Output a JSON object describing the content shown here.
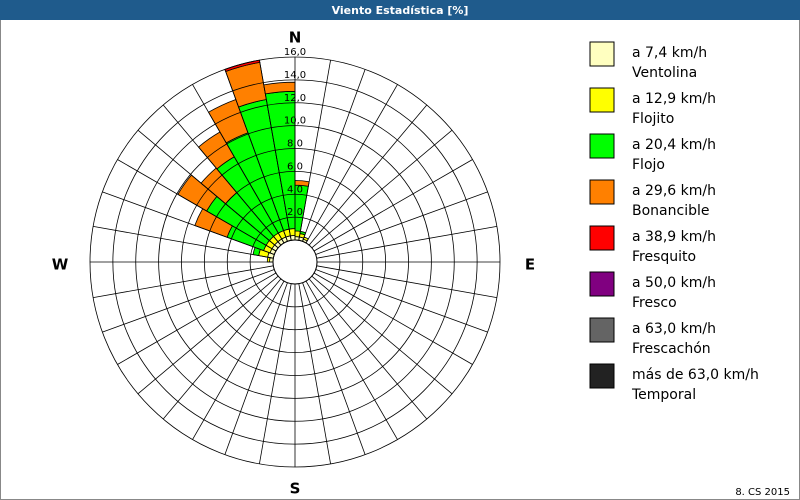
{
  "chart_data": {
    "type": "windrose",
    "title": "Viento Estadística [%]",
    "compass": [
      "N",
      "E",
      "S",
      "W"
    ],
    "footer": "8. CS 2015",
    "rlim": [
      0,
      16
    ],
    "rticks": [
      {
        "value": 2,
        "label": "2,0"
      },
      {
        "value": 4,
        "label": "4,0"
      },
      {
        "value": 6,
        "label": "6,0"
      },
      {
        "value": 8,
        "label": "8,0"
      },
      {
        "value": 10,
        "label": "10,0"
      },
      {
        "value": 12,
        "label": "12,0"
      },
      {
        "value": 14,
        "label": "14,0"
      },
      {
        "value": 16,
        "label": "16,0"
      }
    ],
    "series": [
      {
        "name": "a 7,4 km/h",
        "description": "Ventolina",
        "color": "#ffffc0",
        "values": [
          0.3,
          0.3,
          0.2,
          0,
          0,
          0,
          0,
          0,
          0,
          0,
          0,
          0,
          0,
          0,
          0,
          0,
          0,
          0,
          0,
          0,
          0,
          0,
          0,
          0,
          0,
          0,
          0,
          0.3,
          0.5,
          0.4,
          0.4,
          0.4,
          0.4,
          0.4,
          0.4,
          0.4
        ]
      },
      {
        "name": "a 12,9 km/h",
        "description": "Flojito",
        "color": "#ffff00",
        "values": [
          0.5,
          0.3,
          0.2,
          0,
          0,
          0,
          0,
          0,
          0,
          0,
          0,
          0,
          0,
          0,
          0,
          0,
          0,
          0,
          0,
          0,
          0,
          0,
          0,
          0,
          0,
          0,
          0,
          0.2,
          0.8,
          0.6,
          0.6,
          0.6,
          0.6,
          0.6,
          0.6,
          0.6
        ]
      },
      {
        "name": "a 20,4 km/h",
        "description": "Flojo",
        "color": "#00ff00",
        "values": [
          4.0,
          0.2,
          0,
          0,
          0,
          0,
          0,
          0,
          0,
          0,
          0,
          0,
          0,
          0,
          0,
          0,
          0,
          0,
          0,
          0,
          0,
          0,
          0,
          0,
          0,
          0,
          0,
          0,
          0.5,
          3.4,
          6.0,
          5.0,
          7.7,
          9.1,
          11.5,
          12.0
        ]
      },
      {
        "name": "a 29,6 km/h",
        "description": "Bonancible",
        "color": "#ff8000",
        "values": [
          0.4,
          0,
          0,
          0,
          0,
          0,
          0,
          0,
          0,
          0,
          0,
          0,
          0,
          0,
          0,
          0,
          0,
          0,
          0,
          0,
          0,
          0,
          0,
          0,
          0,
          0,
          0,
          0,
          0,
          3.0,
          2.9,
          2.8,
          2.5,
          3.1,
          3.3,
          0.8
        ]
      },
      {
        "name": "a 38,9 km/h",
        "description": "Fresquito",
        "color": "#ff0000",
        "values": [
          0,
          0,
          0,
          0,
          0,
          0,
          0,
          0,
          0,
          0,
          0,
          0,
          0,
          0,
          0,
          0,
          0,
          0,
          0,
          0,
          0,
          0,
          0,
          0,
          0,
          0,
          0,
          0,
          0,
          0,
          0,
          0,
          0,
          0,
          0.2,
          0
        ]
      },
      {
        "name": "a 50,0 km/h",
        "description": "Fresco",
        "color": "#800080",
        "values": [
          0,
          0,
          0,
          0,
          0,
          0,
          0,
          0,
          0,
          0,
          0,
          0,
          0,
          0,
          0,
          0,
          0,
          0,
          0,
          0,
          0,
          0,
          0,
          0,
          0,
          0,
          0,
          0,
          0,
          0,
          0,
          0,
          0,
          0,
          0,
          0
        ]
      },
      {
        "name": "a 63,0 km/h",
        "description": "Frescachón",
        "color": "#646464",
        "values": [
          0,
          0,
          0,
          0,
          0,
          0,
          0,
          0,
          0,
          0,
          0,
          0,
          0,
          0,
          0,
          0,
          0,
          0,
          0,
          0,
          0,
          0,
          0,
          0,
          0,
          0,
          0,
          0,
          0,
          0,
          0,
          0,
          0,
          0,
          0,
          0
        ]
      },
      {
        "name": "más de 63,0 km/h",
        "description": "Temporal",
        "color": "#222222",
        "values": [
          0,
          0,
          0,
          0,
          0,
          0,
          0,
          0,
          0,
          0,
          0,
          0,
          0,
          0,
          0,
          0,
          0,
          0,
          0,
          0,
          0,
          0,
          0,
          0,
          0,
          0,
          0,
          0,
          0,
          0,
          0,
          0,
          0,
          0,
          0,
          0
        ]
      }
    ]
  }
}
